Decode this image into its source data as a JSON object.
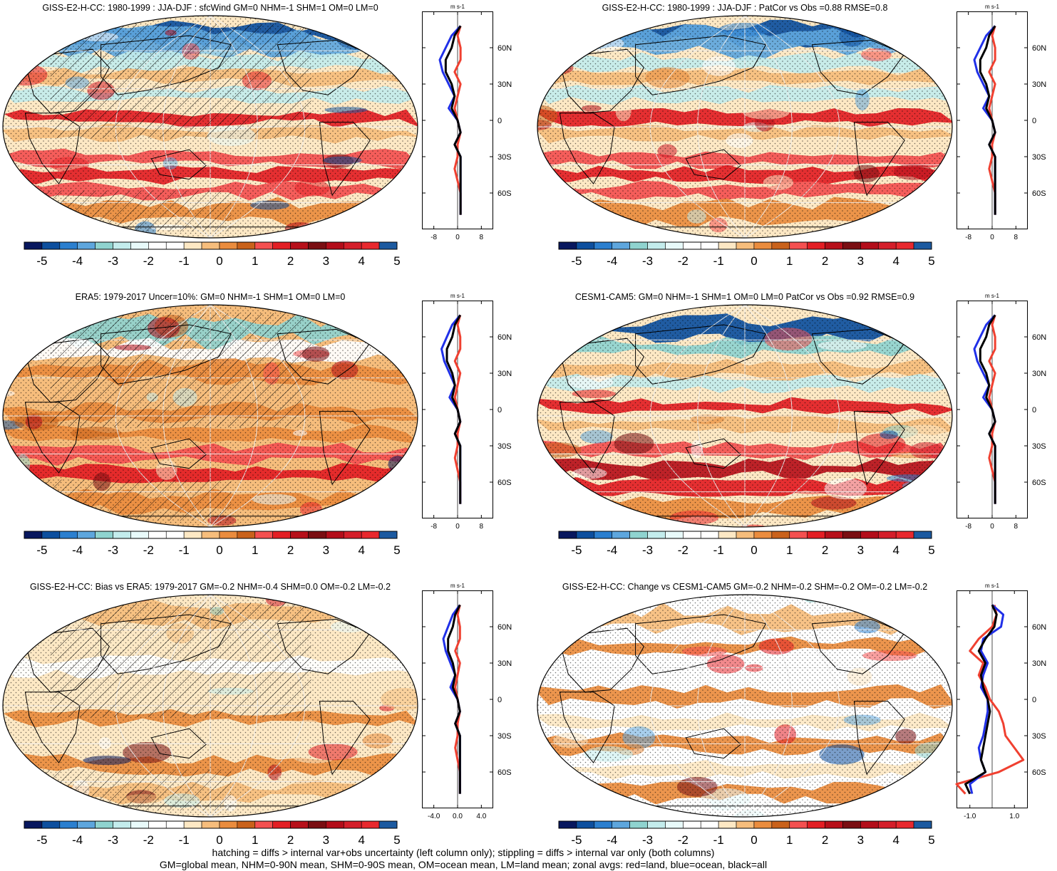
{
  "colors": {
    "palette": [
      "#08175e",
      "#0d4f9e",
      "#2b7fcf",
      "#5ea6dd",
      "#8fd3cf",
      "#c3ecec",
      "#e8fafa",
      "#ffffff",
      "#ffffff",
      "#fde8c4",
      "#f6bd7c",
      "#ea8c3e",
      "#c9621b",
      "#f45050",
      "#e31e24",
      "#b7101a",
      "#7a0e12",
      "#b30d1a",
      "#d41e2a",
      "#e8282e",
      "#1c5aa0"
    ],
    "land_line": "#f04030",
    "ocean_line": "#2030e8",
    "all_line": "#000000"
  },
  "colorbar": {
    "tick_labels": [
      "-5",
      "-4",
      "-3",
      "-2",
      "-1",
      "0",
      "1",
      "2",
      "3",
      "4",
      "5"
    ]
  },
  "panels": [
    {
      "title": "GISS-E2-H-CC: 1980-1999 : JJA-DJF : sfcWind GM=0 NHM=-1 SHM=1 OM=0 LM=0",
      "pattern": "model",
      "hatching": true,
      "zonal": {
        "unit": "m s-1",
        "x_ticks": [
          "-8",
          "0",
          "8"
        ],
        "xlim": [
          -12,
          12
        ],
        "y_ticks": [
          "60N",
          "30N",
          "0",
          "30S",
          "60S"
        ],
        "profile": "model"
      }
    },
    {
      "title": "GISS-E2-H-CC: 1980-1999 : JJA-DJF : PatCor vs Obs =0.88 RMSE=0.8",
      "pattern": "model",
      "hatching": false,
      "zonal": {
        "unit": "m s-1",
        "x_ticks": [
          "-8",
          "0",
          "8"
        ],
        "xlim": [
          -12,
          12
        ],
        "y_ticks": [
          "60N",
          "30N",
          "0",
          "30S",
          "60S"
        ],
        "profile": "model"
      }
    },
    {
      "title": "ERA5: 1979-2017 Uncer=10%: GM=0 NHM=-1 SHM=1 OM=0 LM=0",
      "pattern": "obs",
      "hatching": true,
      "zonal": {
        "unit": "m s-1",
        "x_ticks": [
          "-8",
          "0",
          "8"
        ],
        "xlim": [
          -12,
          12
        ],
        "y_ticks": [
          "60N",
          "30N",
          "0",
          "30S",
          "60S"
        ],
        "profile": "obs"
      }
    },
    {
      "title": "CESM1-CAM5: GM=0 NHM=-1 SHM=1 OM=0 LM=0 PatCor vs Obs =0.92 RMSE=0.9",
      "pattern": "cesm",
      "hatching": false,
      "zonal": {
        "unit": "m s-1",
        "x_ticks": [
          "-8",
          "0",
          "8"
        ],
        "xlim": [
          -12,
          12
        ],
        "y_ticks": [
          "60N",
          "30N",
          "0",
          "30S",
          "60S"
        ],
        "profile": "cesm"
      }
    },
    {
      "title": "GISS-E2-H-CC: Bias vs ERA5: 1979-2017 GM=-0.2 NHM=-0.4 SHM=0.0 OM=-0.2 LM=-0.2",
      "pattern": "bias",
      "hatching": true,
      "zonal": {
        "unit": "m s-1",
        "x_ticks": [
          "-4.0",
          "0.0",
          "4.0"
        ],
        "xlim": [
          -6,
          6
        ],
        "y_ticks": [
          "60N",
          "30N",
          "0",
          "30S",
          "60S"
        ],
        "profile": "bias"
      }
    },
    {
      "title": "GISS-E2-H-CC: Change vs CESM1-CAM5 GM=-0.2 NHM=-0.2 SHM=-0.2 OM=-0.2 LM=-0.2",
      "pattern": "change",
      "hatching": false,
      "zonal": {
        "unit": "m s-1",
        "x_ticks": [
          "-1.0",
          "1.0"
        ],
        "xlim": [
          -1.6,
          1.6
        ],
        "y_ticks": [
          "60N",
          "30N",
          "0",
          "30S",
          "60S"
        ],
        "profile": "change"
      }
    }
  ],
  "chart_data": {
    "type": "heatmap",
    "variable": "sfcWind",
    "colorbar_ticks": [
      -5,
      -4,
      -3,
      -2,
      -1,
      0,
      1,
      2,
      3,
      4,
      5
    ],
    "zonal_means": {
      "model": {
        "lat": [
          78,
          70,
          60,
          50,
          40,
          30,
          20,
          10,
          0,
          -10,
          -20,
          -30,
          -40,
          -50,
          -60,
          -70,
          -78
        ],
        "all": [
          1,
          -1,
          -2,
          -4,
          -4,
          -2,
          -1,
          -2,
          0,
          1,
          -1,
          1,
          1,
          1,
          1,
          1,
          1
        ],
        "land": [
          1,
          0,
          1,
          1,
          -1,
          1,
          0,
          -1,
          0,
          1,
          0,
          0,
          -1,
          0,
          1,
          1,
          1
        ],
        "ocean": [
          1,
          -2,
          -4,
          -6,
          -5,
          -3,
          -1,
          -3,
          0,
          1,
          -1,
          1,
          1,
          1,
          1,
          1,
          1
        ]
      },
      "change": {
        "lat": [
          78,
          70,
          60,
          50,
          40,
          30,
          20,
          10,
          0,
          -10,
          -20,
          -30,
          -40,
          -50,
          -60,
          -70,
          -78
        ],
        "all": [
          0,
          0.2,
          0.1,
          -0.3,
          -0.6,
          -0.3,
          -0.5,
          -0.4,
          -0.2,
          -0.1,
          -0.2,
          -0.3,
          -0.4,
          -0.5,
          -0.3,
          -1.2,
          -1.0
        ],
        "land": [
          0.1,
          0.2,
          0,
          -0.6,
          -1.0,
          -0.4,
          -0.6,
          -0.3,
          -0.1,
          0.3,
          0.5,
          0.6,
          1.0,
          1.4,
          0.3,
          -1.6,
          -1.2
        ],
        "ocean": [
          0,
          0.5,
          0.4,
          -0.4,
          -0.5,
          -0.2,
          -0.4,
          -0.5,
          -0.2,
          -0.2,
          -0.3,
          -0.4,
          -0.6,
          -0.5,
          -0.3,
          -1.0,
          -0.9
        ]
      }
    }
  },
  "footer": {
    "line1": "hatching = diffs > internal var+obs uncertainty (left column only); stippling = diffs > internal var only (both columns)",
    "line2": "GM=global mean, NHM=0-90N mean, SHM=0-90S mean, OM=ocean mean, LM=land mean; zonal avgs: red=land, blue=ocean, black=all"
  }
}
